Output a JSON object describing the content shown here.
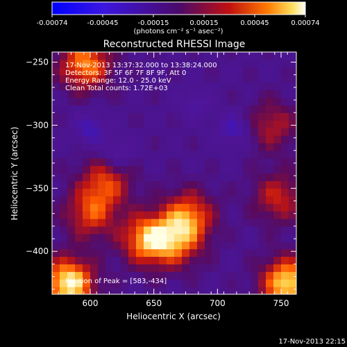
{
  "colorbar": {
    "ticks": [
      "-0.00074",
      "-0.00045",
      "-0.00015",
      "0.00015",
      "0.00045",
      "0.00074"
    ],
    "units": "(photons cm⁻² s⁻¹ asec⁻²)",
    "range": [
      -0.00074,
      0.00074
    ]
  },
  "plot": {
    "title": "Reconstructed RHESSI Image",
    "info": [
      "17-Nov-2013 13:37:32.000 to 13:38:24.000",
      "Detectors: 3F 5F 6F 7F 8F 9F, Att 0",
      "Energy Range: 12.0 - 25.0 keV",
      "Clean     Total counts: 1.72E+03"
    ],
    "peak_label": "Position of Peak = [583,-434]",
    "footer_timestamp": "17-Nov-2013 22:15"
  },
  "chart_data": {
    "type": "heatmap",
    "title": "Reconstructed RHESSI Image",
    "xlabel": "Heliocentric X (arcsec)",
    "ylabel": "Heliocentric Y (arcsec)",
    "xlim": [
      570,
      762
    ],
    "ylim": [
      -434,
      -242
    ],
    "x_ticks": [
      600,
      650,
      700,
      750
    ],
    "y_ticks": [
      -250,
      -300,
      -350,
      -400
    ],
    "x_tick_labels": [
      "600",
      "650",
      "700",
      "750"
    ],
    "y_tick_labels": [
      "−250",
      "−300",
      "−350",
      "−400"
    ],
    "peak": [
      583,
      -434
    ],
    "bright_regions": [
      {
        "x": 583,
        "y": -425,
        "value": 0.00074
      },
      {
        "x": 596,
        "y": -252,
        "value": 0.00055
      },
      {
        "x": 612,
        "y": -345,
        "value": 0.0004
      },
      {
        "x": 600,
        "y": -370,
        "value": 0.0004
      },
      {
        "x": 645,
        "y": -390,
        "value": 0.0006
      },
      {
        "x": 677,
        "y": -372,
        "value": 0.0005
      },
      {
        "x": 668,
        "y": -393,
        "value": 0.0004
      },
      {
        "x": 755,
        "y": -425,
        "value": 0.0007
      },
      {
        "x": 748,
        "y": -357,
        "value": 0.00035
      },
      {
        "x": 743,
        "y": -300,
        "value": 0.0003
      }
    ],
    "dark_regions": [
      {
        "x": 600,
        "y": -303,
        "value": -0.0003
      },
      {
        "x": 713,
        "y": -303,
        "value": -0.0003
      },
      {
        "x": 622,
        "y": -322,
        "value": -0.00025
      },
      {
        "x": 683,
        "y": -283,
        "value": -0.0002
      }
    ]
  }
}
